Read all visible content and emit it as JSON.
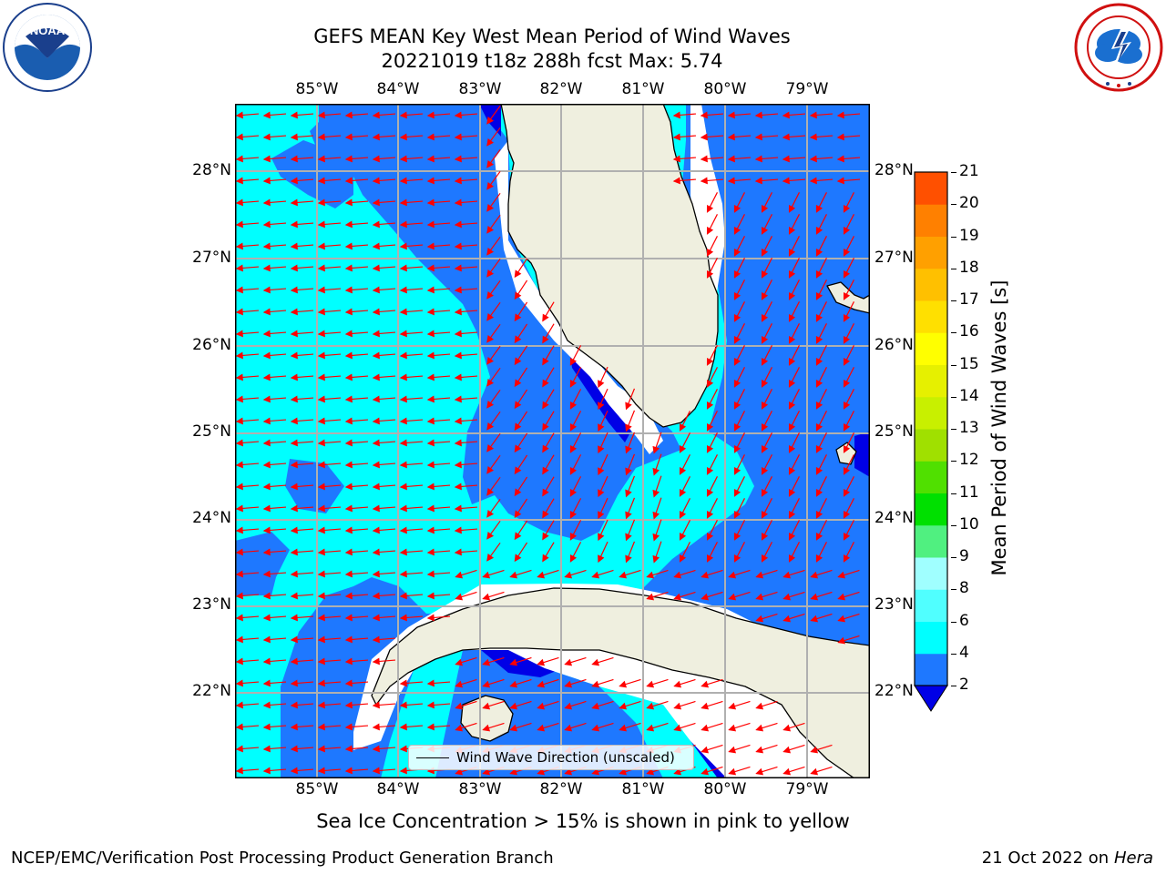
{
  "header": {
    "title_line1": "GEFS MEAN Key West Mean Period of Wind Waves",
    "title_line2": "20221019 t18z 288h fcst   Max: 5.74"
  },
  "logos": {
    "noaa": {
      "icon": "noaa-logo",
      "text": "NOAA"
    },
    "nws": {
      "icon": "nws-logo"
    }
  },
  "map": {
    "lon_ticks": [
      "85°W",
      "84°W",
      "83°W",
      "82°W",
      "81°W",
      "80°W",
      "79°W"
    ],
    "lat_ticks": [
      "28°N",
      "27°N",
      "26°N",
      "25°N",
      "24°N",
      "23°N",
      "22°N"
    ],
    "legend_label": "Wind Wave Direction (unscaled)",
    "colors": {
      "band_2_4": "#1e78ff",
      "band_4_6": "#00ffff",
      "below_2": "#0000e6",
      "land": "#efefdf",
      "arrows": "#ff0000",
      "grid": "#b0b0b0"
    }
  },
  "colorbar": {
    "label": "Mean Period of Wind Waves [s]",
    "ticks": [
      "2",
      "4",
      "6",
      "8",
      "9",
      "10",
      "11",
      "12",
      "13",
      "14",
      "15",
      "16",
      "17",
      "18",
      "19",
      "20",
      "21"
    ],
    "colors": [
      "#1e78ff",
      "#00ffff",
      "#50ffff",
      "#a0ffff",
      "#50f080",
      "#00e000",
      "#50e000",
      "#a0e000",
      "#c8f000",
      "#e6f000",
      "#ffff00",
      "#ffe000",
      "#ffc000",
      "#ffa000",
      "#ff8000",
      "#ff5000",
      "#ff1e00"
    ],
    "under_color": "#0000e6"
  },
  "footer": {
    "note": "Sea Ice Concentration > 15% is shown in pink to yellow",
    "org": "NCEP/EMC/Verification Post Processing Product Generation Branch",
    "date": "21 Oct 2022 on ",
    "machine": "Hera"
  }
}
